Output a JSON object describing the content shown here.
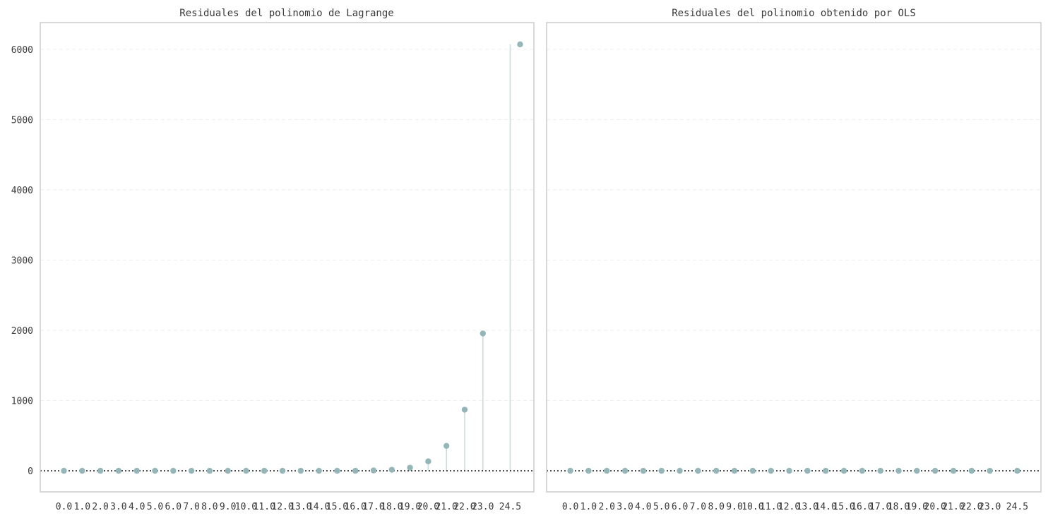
{
  "figure": {
    "background": "#ffffff",
    "axes_edge_color": "#cccccc",
    "marker_color": "#95b6b9",
    "stem_color": "#c9dedd",
    "grid_color": "#eeeeee",
    "zero_line_color": "#000000"
  },
  "chart_data": [
    {
      "type": "scatter",
      "title": "Residuales del polinomio de Lagrange",
      "xlabel": "",
      "ylabel": "",
      "x_tick_labels": [
        "0.0",
        "1.0",
        "2.0",
        "3.0",
        "4.0",
        "5.0",
        "6.0",
        "7.0",
        "8.0",
        "9.0",
        "10.0",
        "11.0",
        "12.0",
        "13.0",
        "14.0",
        "15.0",
        "16.0",
        "17.0",
        "18.0",
        "19.0",
        "20.0",
        "21.0",
        "22.0",
        "23.0",
        "24.5"
      ],
      "x": [
        0,
        1,
        2,
        3,
        4,
        5,
        6,
        7,
        8,
        9,
        10,
        11,
        12,
        13,
        14,
        15,
        16,
        17,
        18,
        19,
        20,
        21,
        22,
        23,
        24.5
      ],
      "y": [
        0,
        0,
        0,
        0,
        0,
        0,
        0,
        0,
        0,
        0,
        0,
        0,
        0,
        0,
        0,
        0,
        0,
        5,
        15,
        45,
        135,
        355,
        870,
        1955,
        6070
      ],
      "xlim": [
        -1.3,
        25.8
      ],
      "ylim": [
        -300,
        6380
      ],
      "yticks": [
        0,
        1000,
        2000,
        3000,
        4000,
        5000,
        6000
      ],
      "stems": true,
      "zero_line": "dotted",
      "grid": "horizontal dashed"
    },
    {
      "type": "scatter",
      "title": "Residuales del polinomio obtenido por OLS",
      "xlabel": "",
      "ylabel": "",
      "x_tick_labels": [
        "0.0",
        "1.0",
        "2.0",
        "3.0",
        "4.0",
        "5.0",
        "6.0",
        "7.0",
        "8.0",
        "9.0",
        "10.0",
        "11.0",
        "12.0",
        "13.0",
        "14.0",
        "15.0",
        "16.0",
        "17.0",
        "18.0",
        "19.0",
        "20.0",
        "21.0",
        "22.0",
        "23.0",
        "24.5"
      ],
      "x": [
        0,
        1,
        2,
        3,
        4,
        5,
        6,
        7,
        8,
        9,
        10,
        11,
        12,
        13,
        14,
        15,
        16,
        17,
        18,
        19,
        20,
        21,
        22,
        23,
        24.5
      ],
      "y": [
        0,
        0,
        0,
        0,
        0,
        0,
        0,
        0,
        0,
        0,
        0,
        0,
        0,
        0,
        0,
        0,
        0,
        0,
        0,
        0,
        0,
        0,
        0,
        0,
        0
      ],
      "xlim": [
        -1.3,
        25.8
      ],
      "ylim": [
        -300,
        6380
      ],
      "yticks": [],
      "shared_y": true,
      "stems": true,
      "zero_line": "dotted",
      "grid": "horizontal dashed"
    }
  ]
}
